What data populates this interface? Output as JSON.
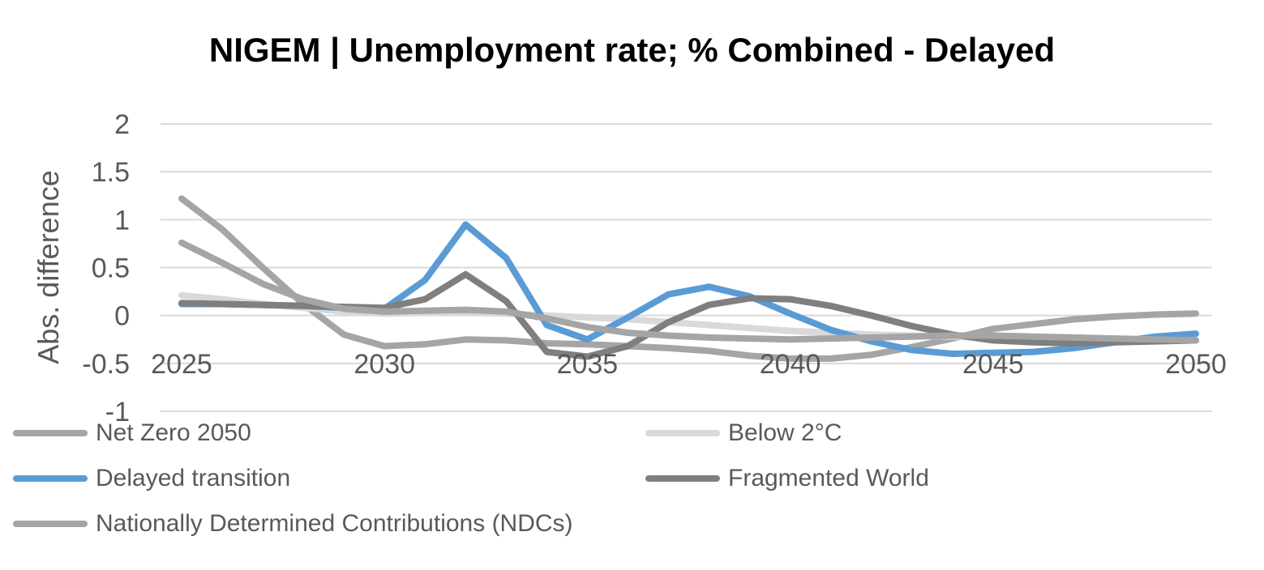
{
  "chart_data": {
    "type": "line",
    "title": "NIGEM | Unemployment rate; % Combined - Delayed",
    "xlabel": "",
    "ylabel": "Abs. difference",
    "x": [
      2025,
      2026,
      2027,
      2028,
      2029,
      2030,
      2031,
      2032,
      2033,
      2034,
      2035,
      2036,
      2037,
      2038,
      2039,
      2040,
      2041,
      2042,
      2043,
      2044,
      2045,
      2046,
      2047,
      2048,
      2049,
      2050
    ],
    "x_ticks": [
      "2025",
      "2030",
      "2035",
      "2040",
      "2045",
      "2050"
    ],
    "y_ticks": [
      "2",
      "1.5",
      "1",
      "0.5",
      "0",
      "-0.5",
      "-1"
    ],
    "ylim": [
      -1,
      2
    ],
    "grid": true,
    "legend_position": "bottom",
    "series": [
      {
        "name": "Net Zero 2050",
        "color": "#a5a5a5",
        "values": [
          1.22,
          0.9,
          0.5,
          0.12,
          -0.2,
          -0.32,
          -0.3,
          -0.25,
          -0.26,
          -0.29,
          -0.3,
          -0.32,
          -0.34,
          -0.37,
          -0.42,
          -0.45,
          -0.45,
          -0.41,
          -0.33,
          -0.24,
          -0.14,
          -0.09,
          -0.04,
          -0.01,
          0.01,
          0.02
        ]
      },
      {
        "name": "Below 2°C",
        "color": "#d9d9d9",
        "values": [
          0.21,
          0.17,
          0.12,
          0.08,
          0.04,
          0.02,
          0.03,
          0.03,
          0.02,
          0.0,
          -0.02,
          -0.04,
          -0.07,
          -0.1,
          -0.13,
          -0.16,
          -0.18,
          -0.2,
          -0.21,
          -0.22,
          -0.23,
          -0.24,
          -0.25,
          -0.25,
          -0.26,
          -0.26
        ]
      },
      {
        "name": "Delayed transition",
        "color": "#5b9bd5",
        "values": [
          0.12,
          0.12,
          0.11,
          0.1,
          0.08,
          0.07,
          0.37,
          0.95,
          0.6,
          -0.1,
          -0.25,
          -0.02,
          0.22,
          0.3,
          0.2,
          0.02,
          -0.15,
          -0.27,
          -0.36,
          -0.4,
          -0.39,
          -0.38,
          -0.34,
          -0.28,
          -0.22,
          -0.19
        ]
      },
      {
        "name": "Fragmented World",
        "color": "#7f7f7f",
        "values": [
          0.13,
          0.12,
          0.11,
          0.1,
          0.09,
          0.08,
          0.17,
          0.43,
          0.15,
          -0.38,
          -0.43,
          -0.32,
          -0.07,
          0.11,
          0.18,
          0.17,
          0.1,
          0.0,
          -0.11,
          -0.2,
          -0.26,
          -0.28,
          -0.29,
          -0.28,
          -0.27,
          -0.26
        ]
      },
      {
        "name": "Nationally Determined Contributions (NDCs)",
        "color": "#a5a5a5",
        "values": [
          0.76,
          0.55,
          0.33,
          0.17,
          0.07,
          0.04,
          0.05,
          0.06,
          0.04,
          -0.03,
          -0.12,
          -0.18,
          -0.21,
          -0.23,
          -0.24,
          -0.25,
          -0.24,
          -0.23,
          -0.22,
          -0.21,
          -0.21,
          -0.22,
          -0.23,
          -0.24,
          -0.25,
          -0.26
        ]
      }
    ]
  }
}
